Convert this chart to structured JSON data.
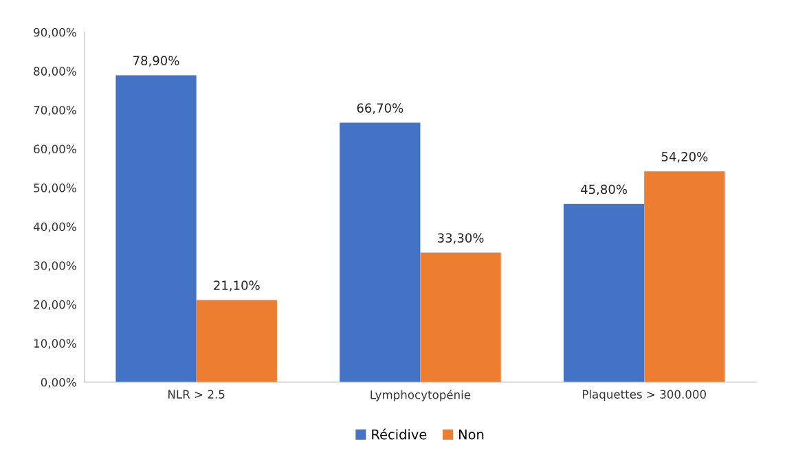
{
  "chart_data": {
    "type": "bar",
    "categories": [
      "NLR > 2.5",
      "Lymphocytopénie",
      "Plaquettes > 300.000"
    ],
    "series": [
      {
        "name": "Récidive",
        "color": "#4472c4",
        "values": [
          78.9,
          66.7,
          45.8
        ],
        "value_labels": [
          "78,90%",
          "66,70%",
          "45,80%"
        ]
      },
      {
        "name": "Non",
        "color": "#ed7d31",
        "values": [
          21.1,
          33.3,
          54.2
        ],
        "value_labels": [
          "21,10%",
          "33,30%",
          "54,20%"
        ]
      }
    ],
    "ylim": [
      0,
      90
    ],
    "yticks": [
      {
        "value": 0,
        "label": "0,00%"
      },
      {
        "value": 10,
        "label": "10,00%"
      },
      {
        "value": 20,
        "label": "20,00%"
      },
      {
        "value": 30,
        "label": "30,00%"
      },
      {
        "value": 40,
        "label": "40,00%"
      },
      {
        "value": 50,
        "label": "50,00%"
      },
      {
        "value": 60,
        "label": "60,00%"
      },
      {
        "value": 70,
        "label": "70,00%"
      },
      {
        "value": 80,
        "label": "80,00%"
      },
      {
        "value": 90,
        "label": "90,00%"
      }
    ],
    "grid": false,
    "legend": "bottom"
  }
}
